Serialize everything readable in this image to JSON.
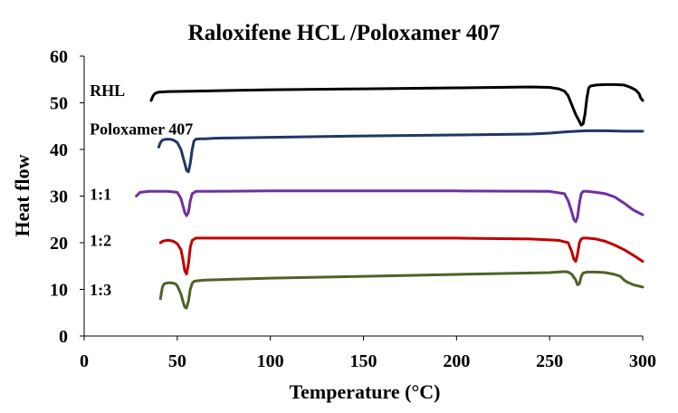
{
  "chart_data": {
    "type": "line",
    "title": "Raloxifene HCL /Poloxamer 407",
    "xlabel": "Temperature (°C)",
    "ylabel": "Heat flow",
    "xlim": [
      0,
      300
    ],
    "ylim": [
      0,
      60
    ],
    "xticks": [
      0,
      50,
      100,
      150,
      200,
      250,
      300
    ],
    "yticks": [
      0,
      10,
      20,
      30,
      40,
      50,
      60
    ],
    "grid": false,
    "legend": "none",
    "series": [
      {
        "name": "RHL",
        "color": "#000000",
        "x": [
          36,
          37,
          38,
          40,
          45,
          60,
          100,
          150,
          200,
          240,
          250,
          255,
          258,
          260,
          262,
          264,
          266,
          267,
          268,
          269,
          270,
          271,
          272,
          275,
          280,
          285,
          290,
          293,
          296,
          298,
          299,
          300
        ],
        "y": [
          50.5,
          51.5,
          52.0,
          52.3,
          52.4,
          52.5,
          52.8,
          53.0,
          53.2,
          53.4,
          53.3,
          53.0,
          52.5,
          51.5,
          49.5,
          47.5,
          46.0,
          45.2,
          45.5,
          47.5,
          51.0,
          53.2,
          53.6,
          53.8,
          53.9,
          53.9,
          53.8,
          53.4,
          52.8,
          52.0,
          51.0,
          50.5
        ]
      },
      {
        "name": "Poloxamer 407",
        "color": "#1f3864",
        "x": [
          40,
          41,
          42,
          44,
          46,
          48,
          50,
          52,
          54,
          55,
          56,
          57,
          58,
          59,
          60,
          62,
          65,
          70,
          100,
          150,
          200,
          240,
          250,
          260,
          270,
          280,
          290,
          300
        ],
        "y": [
          40.5,
          41.5,
          42.0,
          42.2,
          42.2,
          42.0,
          41.5,
          40.0,
          37.0,
          35.5,
          35.2,
          37.0,
          40.0,
          41.8,
          42.2,
          42.3,
          42.3,
          42.4,
          42.6,
          42.9,
          43.1,
          43.3,
          43.5,
          43.8,
          44.0,
          44.0,
          43.9,
          43.9
        ]
      },
      {
        "name": "1:1",
        "color": "#7030a0",
        "x": [
          28,
          30,
          35,
          40,
          45,
          50,
          52,
          53,
          54,
          55,
          56,
          57,
          58,
          60,
          65,
          100,
          150,
          200,
          250,
          258,
          260,
          262,
          263,
          264,
          265,
          266,
          267,
          268,
          270,
          275,
          280,
          285,
          290,
          295,
          300
        ],
        "y": [
          30.0,
          30.8,
          31.0,
          31.0,
          31.0,
          30.8,
          29.5,
          28.0,
          26.5,
          25.8,
          26.5,
          29.0,
          30.5,
          31.0,
          31.0,
          31.1,
          31.1,
          31.1,
          31.0,
          30.5,
          29.0,
          26.5,
          25.0,
          24.5,
          25.5,
          28.5,
          30.5,
          31.0,
          31.0,
          30.8,
          30.5,
          29.8,
          28.5,
          27.0,
          26.0
        ]
      },
      {
        "name": "1:2",
        "color": "#c00000",
        "x": [
          41,
          42,
          44,
          46,
          48,
          50,
          52,
          53,
          54,
          55,
          56,
          57,
          58,
          60,
          65,
          100,
          150,
          200,
          240,
          255,
          260,
          262,
          263,
          264,
          265,
          266,
          267,
          268,
          270,
          275,
          280,
          285,
          290,
          295,
          300
        ],
        "y": [
          20.0,
          20.3,
          20.5,
          20.5,
          20.3,
          19.8,
          18.5,
          16.5,
          14.0,
          13.3,
          15.5,
          19.0,
          20.5,
          21.0,
          21.0,
          21.0,
          21.0,
          21.0,
          20.8,
          20.5,
          20.0,
          18.0,
          16.5,
          16.0,
          17.5,
          20.0,
          20.8,
          21.0,
          21.0,
          20.8,
          20.3,
          19.5,
          18.5,
          17.3,
          16.0
        ]
      },
      {
        "name": "1:3",
        "color": "#4f6228",
        "x": [
          41,
          42,
          43,
          45,
          47,
          49,
          50,
          52,
          53,
          54,
          55,
          56,
          57,
          58,
          59,
          60,
          62,
          65,
          100,
          150,
          200,
          250,
          258,
          260,
          262,
          264,
          265,
          266,
          267,
          268,
          270,
          275,
          280,
          285,
          288,
          290,
          292,
          295,
          300
        ],
        "y": [
          8.0,
          10.5,
          11.2,
          11.4,
          11.4,
          11.2,
          10.8,
          9.0,
          7.5,
          6.2,
          6.0,
          7.5,
          10.0,
          11.3,
          11.7,
          11.8,
          11.9,
          12.0,
          12.4,
          12.8,
          13.2,
          13.6,
          13.8,
          13.7,
          13.2,
          12.0,
          11.0,
          11.2,
          12.8,
          13.5,
          13.7,
          13.7,
          13.6,
          13.2,
          12.8,
          12.0,
          11.5,
          11.0,
          10.5
        ]
      }
    ],
    "series_labels": [
      {
        "text": "RHL",
        "at": [
          3,
          51.5
        ]
      },
      {
        "text": "Poloxamer 407",
        "at": [
          3,
          43.2
        ]
      },
      {
        "text": "1:1",
        "at": [
          3,
          29.2
        ]
      },
      {
        "text": "1:2",
        "at": [
          3,
          19.3
        ]
      },
      {
        "text": "1:3",
        "at": [
          3,
          8.7
        ]
      }
    ]
  }
}
